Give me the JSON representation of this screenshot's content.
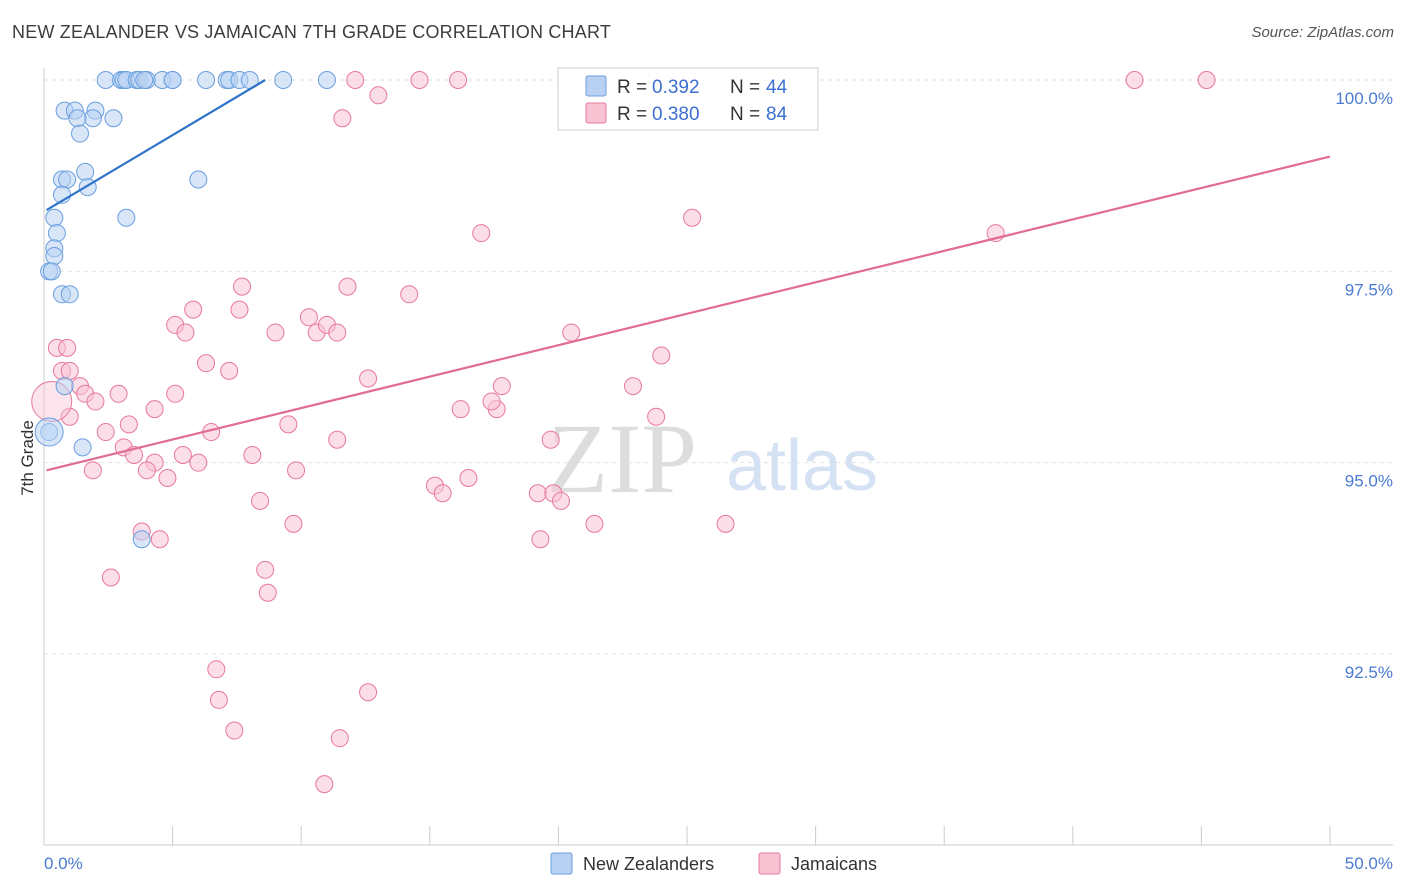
{
  "title": "NEW ZEALANDER VS JAMAICAN 7TH GRADE CORRELATION CHART",
  "source": "Source: ZipAtlas.com",
  "watermark": {
    "zip": "ZIP",
    "atlas": "atlas"
  },
  "chart_data": {
    "type": "scatter",
    "xlabel": "",
    "ylabel": "7th Grade",
    "xlim": [
      0,
      50
    ],
    "ylim": [
      90.0,
      100.5
    ],
    "x_tick_labels": {
      "left": "0.0%",
      "right": "50.0%"
    },
    "y_ticks": [
      {
        "value": 100.0,
        "label": "100.0%"
      },
      {
        "value": 97.5,
        "label": "97.5%"
      },
      {
        "value": 95.0,
        "label": "95.0%"
      },
      {
        "value": 92.5,
        "label": "92.5%"
      }
    ],
    "legend": {
      "rows": [
        {
          "r_label": "R =",
          "r_value": "0.392",
          "n_label": "N =",
          "n_value": "44"
        },
        {
          "r_label": "R =",
          "r_value": "0.380",
          "n_label": "N =",
          "n_value": "84"
        }
      ]
    },
    "series": [
      {
        "name": "New Zealanders",
        "color": "#6a9ee0",
        "fill": "#b8d1f3",
        "trend": {
          "x1": 0.1,
          "y1": 98.3,
          "x2": 8.6,
          "y2": 100.0
        },
        "points": [
          [
            2.4,
            100
          ],
          [
            3.0,
            100
          ],
          [
            3.1,
            100
          ],
          [
            3.2,
            100
          ],
          [
            3.6,
            100
          ],
          [
            3.7,
            100
          ],
          [
            4.0,
            100
          ],
          [
            3.9,
            100
          ],
          [
            4.6,
            100
          ],
          [
            5.0,
            100
          ],
          [
            5.0,
            100
          ],
          [
            6.3,
            100
          ],
          [
            7.1,
            100
          ],
          [
            7.2,
            100
          ],
          [
            7.6,
            100
          ],
          [
            8.0,
            100
          ],
          [
            9.3,
            100
          ],
          [
            11.0,
            100
          ],
          [
            0.8,
            99.6
          ],
          [
            1.2,
            99.6
          ],
          [
            2.0,
            99.6
          ],
          [
            1.9,
            99.5
          ],
          [
            1.3,
            99.5
          ],
          [
            2.7,
            99.5
          ],
          [
            1.4,
            99.3
          ],
          [
            1.6,
            98.8
          ],
          [
            0.7,
            98.7
          ],
          [
            0.9,
            98.7
          ],
          [
            6.0,
            98.7
          ],
          [
            1.7,
            98.6
          ],
          [
            0.7,
            98.5
          ],
          [
            0.4,
            98.2
          ],
          [
            3.2,
            98.2
          ],
          [
            0.5,
            98.0
          ],
          [
            0.4,
            97.8
          ],
          [
            0.4,
            97.7
          ],
          [
            0.2,
            97.5
          ],
          [
            0.3,
            97.5
          ],
          [
            0.7,
            97.2
          ],
          [
            1.0,
            97.2
          ],
          [
            0.8,
            96.0
          ],
          [
            0.2,
            95.4
          ],
          [
            1.5,
            95.2
          ],
          [
            3.8,
            94.0
          ]
        ]
      },
      {
        "name": "Jamaicans",
        "color": "#e8789c",
        "fill": "#f7c3d3",
        "trend": {
          "x1": 0.1,
          "y1": 94.9,
          "x2": 50.0,
          "y2": 99.0
        },
        "points": [
          [
            12.1,
            100
          ],
          [
            14.6,
            100
          ],
          [
            16.1,
            100
          ],
          [
            25.8,
            100
          ],
          [
            27.6,
            100
          ],
          [
            42.4,
            100
          ],
          [
            45.2,
            100
          ],
          [
            13.0,
            99.8
          ],
          [
            11.6,
            99.5
          ],
          [
            17.0,
            98.0
          ],
          [
            25.2,
            98.2
          ],
          [
            37.0,
            98.0
          ],
          [
            0.5,
            96.5
          ],
          [
            0.9,
            96.5
          ],
          [
            7.7,
            97.3
          ],
          [
            11.8,
            97.3
          ],
          [
            5.8,
            97.0
          ],
          [
            7.6,
            97.0
          ],
          [
            14.2,
            97.2
          ],
          [
            5.1,
            96.8
          ],
          [
            5.5,
            96.7
          ],
          [
            9.0,
            96.7
          ],
          [
            10.3,
            96.9
          ],
          [
            10.6,
            96.7
          ],
          [
            11.0,
            96.8
          ],
          [
            11.4,
            96.7
          ],
          [
            20.5,
            96.7
          ],
          [
            0.7,
            96.2
          ],
          [
            1.0,
            96.2
          ],
          [
            6.3,
            96.3
          ],
          [
            7.2,
            96.2
          ],
          [
            24.0,
            96.4
          ],
          [
            1.4,
            96.0
          ],
          [
            1.6,
            95.9
          ],
          [
            2.0,
            95.8
          ],
          [
            2.9,
            95.9
          ],
          [
            4.3,
            95.7
          ],
          [
            5.1,
            95.9
          ],
          [
            12.6,
            96.1
          ],
          [
            16.2,
            95.7
          ],
          [
            17.8,
            96.0
          ],
          [
            17.6,
            95.7
          ],
          [
            17.4,
            95.8
          ],
          [
            22.9,
            96.0
          ],
          [
            23.8,
            95.6
          ],
          [
            1.0,
            95.6
          ],
          [
            3.3,
            95.5
          ],
          [
            9.5,
            95.5
          ],
          [
            6.5,
            95.4
          ],
          [
            3.1,
            95.2
          ],
          [
            3.5,
            95.1
          ],
          [
            4.3,
            95.0
          ],
          [
            1.9,
            94.9
          ],
          [
            2.4,
            95.4
          ],
          [
            5.4,
            95.1
          ],
          [
            6.0,
            95.0
          ],
          [
            8.1,
            95.1
          ],
          [
            11.4,
            95.3
          ],
          [
            19.7,
            95.3
          ],
          [
            9.8,
            94.9
          ],
          [
            4.0,
            94.9
          ],
          [
            4.8,
            94.8
          ],
          [
            15.2,
            94.7
          ],
          [
            15.5,
            94.6
          ],
          [
            16.5,
            94.8
          ],
          [
            19.2,
            94.6
          ],
          [
            19.8,
            94.6
          ],
          [
            8.4,
            94.5
          ],
          [
            20.1,
            94.5
          ],
          [
            9.7,
            94.2
          ],
          [
            21.4,
            94.2
          ],
          [
            26.5,
            94.2
          ],
          [
            3.8,
            94.1
          ],
          [
            4.5,
            94.0
          ],
          [
            19.3,
            94.0
          ],
          [
            8.6,
            93.6
          ],
          [
            2.6,
            93.5
          ],
          [
            8.7,
            93.3
          ],
          [
            6.7,
            92.3
          ],
          [
            6.8,
            91.9
          ],
          [
            12.6,
            92.0
          ],
          [
            7.4,
            91.5
          ],
          [
            11.5,
            91.4
          ],
          [
            10.9,
            90.8
          ]
        ]
      }
    ]
  }
}
